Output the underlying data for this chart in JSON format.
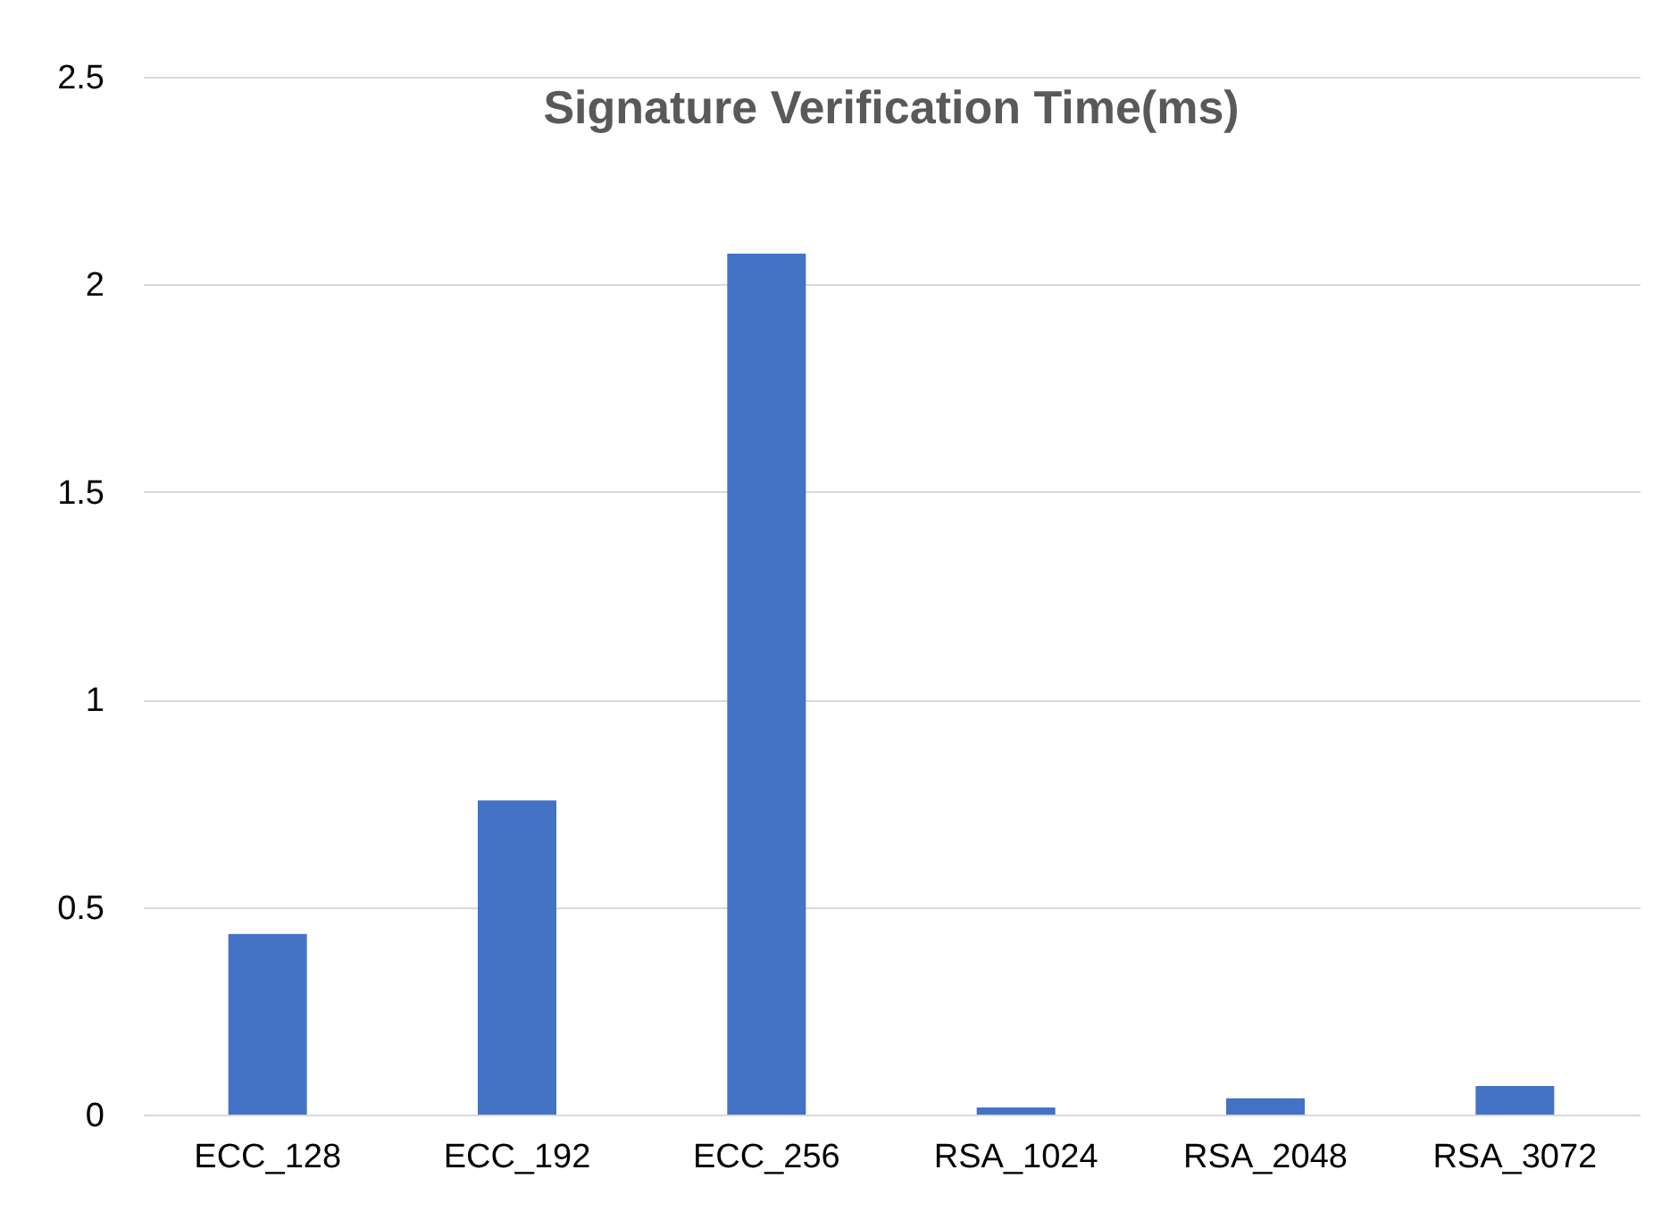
{
  "chart_data": {
    "type": "bar",
    "title": "Signature Verification Time(ms)",
    "categories": [
      "ECC_128",
      "ECC_192",
      "ECC_256",
      "RSA_1024",
      "RSA_2048",
      "RSA_3072"
    ],
    "values": [
      0.435,
      0.757,
      2.074,
      0.017,
      0.039,
      0.069
    ],
    "color": "#4472c4",
    "ylim": [
      0,
      2.5
    ],
    "yticks": [
      0,
      0.5,
      1,
      1.5,
      2,
      2.5
    ],
    "grid": "y"
  }
}
